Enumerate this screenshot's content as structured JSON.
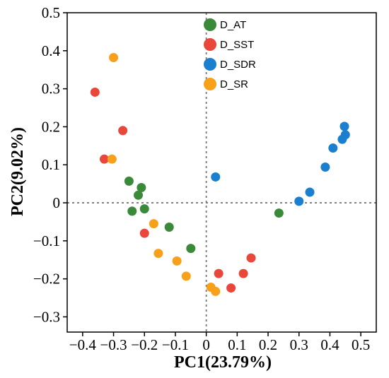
{
  "chart_data": {
    "type": "scatter",
    "xlabel": "PC1(23.79%)",
    "ylabel": "PC2(9.02%)",
    "xlim": [
      -0.45,
      0.55
    ],
    "ylim": [
      -0.34,
      0.5
    ],
    "xticks": [
      -0.4,
      -0.3,
      -0.2,
      -0.1,
      0,
      0.1,
      0.2,
      0.3,
      0.4,
      0.5
    ],
    "yticks": [
      -0.3,
      -0.2,
      -0.1,
      0,
      0.1,
      0.2,
      0.3,
      0.4,
      0.5
    ],
    "xtick_labels": [
      "−0.4",
      "−0.3",
      "−0.2",
      "−0.1",
      "0",
      "0.1",
      "0.2",
      "0.3",
      "0.4",
      "0.5"
    ],
    "ytick_labels": [
      "−0.3",
      "−0.2",
      "−0.1",
      "0",
      "0.1",
      "0.2",
      "0.3",
      "0.4",
      "0.5"
    ],
    "reference_lines": {
      "x": 0,
      "y": 0,
      "style": "dotted"
    },
    "legend_position": "top-center",
    "grid": false,
    "series": [
      {
        "name": "D_AT",
        "color": "#3a8a3a",
        "points": [
          [
            -0.25,
            0.057
          ],
          [
            -0.21,
            0.04
          ],
          [
            -0.22,
            0.02
          ],
          [
            -0.24,
            -0.022
          ],
          [
            -0.2,
            -0.016
          ],
          [
            -0.12,
            -0.064
          ],
          [
            -0.05,
            -0.12
          ],
          [
            0.235,
            -0.027
          ]
        ]
      },
      {
        "name": "D_SST",
        "color": "#e8473a",
        "points": [
          [
            -0.36,
            0.291
          ],
          [
            -0.27,
            0.19
          ],
          [
            -0.33,
            0.115
          ],
          [
            -0.2,
            -0.08
          ],
          [
            0.04,
            -0.186
          ],
          [
            0.08,
            -0.224
          ],
          [
            0.12,
            -0.186
          ],
          [
            0.145,
            -0.145
          ]
        ]
      },
      {
        "name": "D_SDR",
        "color": "#1a7fcf",
        "points": [
          [
            0.03,
            0.068
          ],
          [
            0.3,
            0.004
          ],
          [
            0.335,
            0.028
          ],
          [
            0.385,
            0.094
          ],
          [
            0.41,
            0.144
          ],
          [
            0.44,
            0.167
          ],
          [
            0.447,
            0.201
          ],
          [
            0.45,
            0.179
          ]
        ]
      },
      {
        "name": "D_SR",
        "color": "#f7a11a",
        "points": [
          [
            -0.3,
            0.382
          ],
          [
            -0.305,
            0.115
          ],
          [
            -0.17,
            -0.055
          ],
          [
            -0.155,
            -0.133
          ],
          [
            -0.095,
            -0.153
          ],
          [
            -0.065,
            -0.193
          ],
          [
            0.015,
            -0.222
          ],
          [
            0.03,
            -0.233
          ]
        ]
      }
    ]
  }
}
